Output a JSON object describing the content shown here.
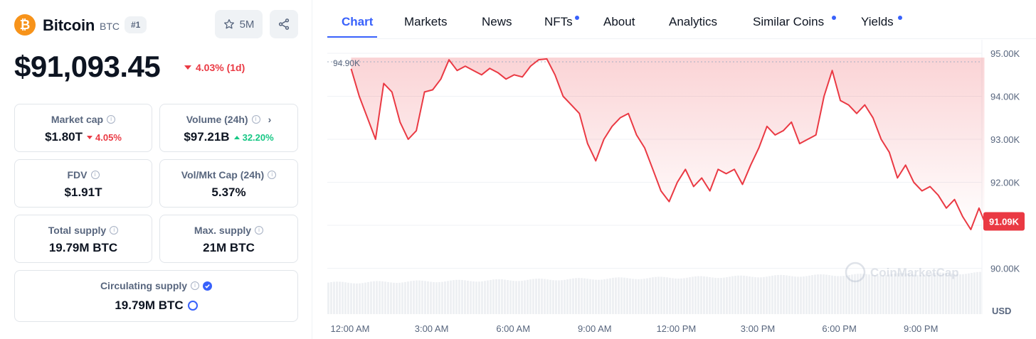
{
  "coin": {
    "name": "Bitcoin",
    "symbol": "BTC",
    "rank": "#1",
    "watchlist_count": "5M",
    "price": "$91,093.45",
    "price_change": "4.03% (1d)"
  },
  "stats": {
    "market_cap": {
      "label": "Market cap",
      "value": "$1.80T",
      "change": "4.05%"
    },
    "volume": {
      "label": "Volume (24h)",
      "value": "$97.21B",
      "change": "32.20%"
    },
    "fdv": {
      "label": "FDV",
      "value": "$1.91T"
    },
    "vol_mkt_cap": {
      "label": "Vol/Mkt Cap (24h)",
      "value": "5.37%"
    },
    "total_supply": {
      "label": "Total supply",
      "value": "19.79M BTC"
    },
    "max_supply": {
      "label": "Max. supply",
      "value": "21M BTC"
    },
    "circulating_supply": {
      "label": "Circulating supply",
      "value": "19.79M BTC"
    }
  },
  "tabs": [
    {
      "label": "Chart",
      "active": true,
      "dot": false
    },
    {
      "label": "Markets",
      "active": false,
      "dot": false
    },
    {
      "label": "News",
      "active": false,
      "dot": false
    },
    {
      "label": "NFTs",
      "active": false,
      "dot": true
    },
    {
      "label": "About",
      "active": false,
      "dot": false
    },
    {
      "label": "Analytics",
      "active": false,
      "dot": false
    },
    {
      "label": "Similar Coins",
      "active": false,
      "dot": true
    },
    {
      "label": "Yields",
      "active": false,
      "dot": true
    }
  ],
  "chart_data": {
    "type": "line",
    "y_unit": "USD",
    "y_ticks": [
      "95.00K",
      "94.00K",
      "93.00K",
      "92.00K",
      "90.00K"
    ],
    "y_tick_values": [
      95000,
      94000,
      93000,
      92000,
      90000
    ],
    "x_ticks": [
      "12:00 AM",
      "3:00 AM",
      "6:00 AM",
      "9:00 AM",
      "12:00 PM",
      "3:00 PM",
      "6:00 PM",
      "9:00 PM"
    ],
    "reference_label": "94.90K",
    "reference_value": 94900,
    "current_label": "91.09K",
    "current_value": 91090,
    "watermark": "CoinMarketCap",
    "series_hours": [
      0.3,
      0.6,
      0.9,
      1.2,
      1.5,
      1.8,
      2.1,
      2.4,
      2.7,
      3.0,
      3.3,
      3.6,
      3.9,
      4.2,
      4.5,
      4.8,
      5.1,
      5.4,
      5.7,
      6.0,
      6.3,
      6.6,
      6.9,
      7.2,
      7.5,
      7.8,
      8.1,
      8.4,
      8.7,
      9.0,
      9.3,
      9.6,
      9.9,
      10.2,
      10.5,
      10.8,
      11.1,
      11.4,
      11.7,
      12.0,
      12.3,
      12.6,
      12.9,
      13.2,
      13.5,
      13.8,
      14.1,
      14.4,
      14.7,
      15.0,
      15.3,
      15.6,
      15.9,
      16.2,
      16.5,
      16.8,
      17.1,
      17.4,
      17.7,
      18.0,
      18.3,
      18.6,
      18.9,
      19.2,
      19.5,
      19.8,
      20.1,
      20.4,
      20.7,
      21.0,
      21.3,
      21.6,
      21.9,
      22.2,
      22.5,
      22.8,
      23.1,
      23.4,
      23.6
    ],
    "series_values": [
      94640,
      94000,
      93500,
      93000,
      94300,
      94100,
      93400,
      93000,
      93200,
      94100,
      94150,
      94400,
      94850,
      94600,
      94700,
      94600,
      94500,
      94650,
      94550,
      94400,
      94500,
      94450,
      94700,
      94850,
      94870,
      94500,
      94000,
      93800,
      93600,
      92900,
      92500,
      93000,
      93300,
      93500,
      93600,
      93100,
      92800,
      92300,
      91800,
      91550,
      92000,
      92300,
      91900,
      92100,
      91800,
      92300,
      92200,
      92300,
      91950,
      92400,
      92800,
      93300,
      93100,
      93200,
      93400,
      92900,
      93000,
      93100,
      94000,
      94600,
      93900,
      93800,
      93600,
      93800,
      93500,
      93000,
      92700,
      92100,
      92400,
      92000,
      91800,
      91900,
      91700,
      91400,
      91600,
      91200,
      90900,
      91400,
      91090
    ]
  }
}
